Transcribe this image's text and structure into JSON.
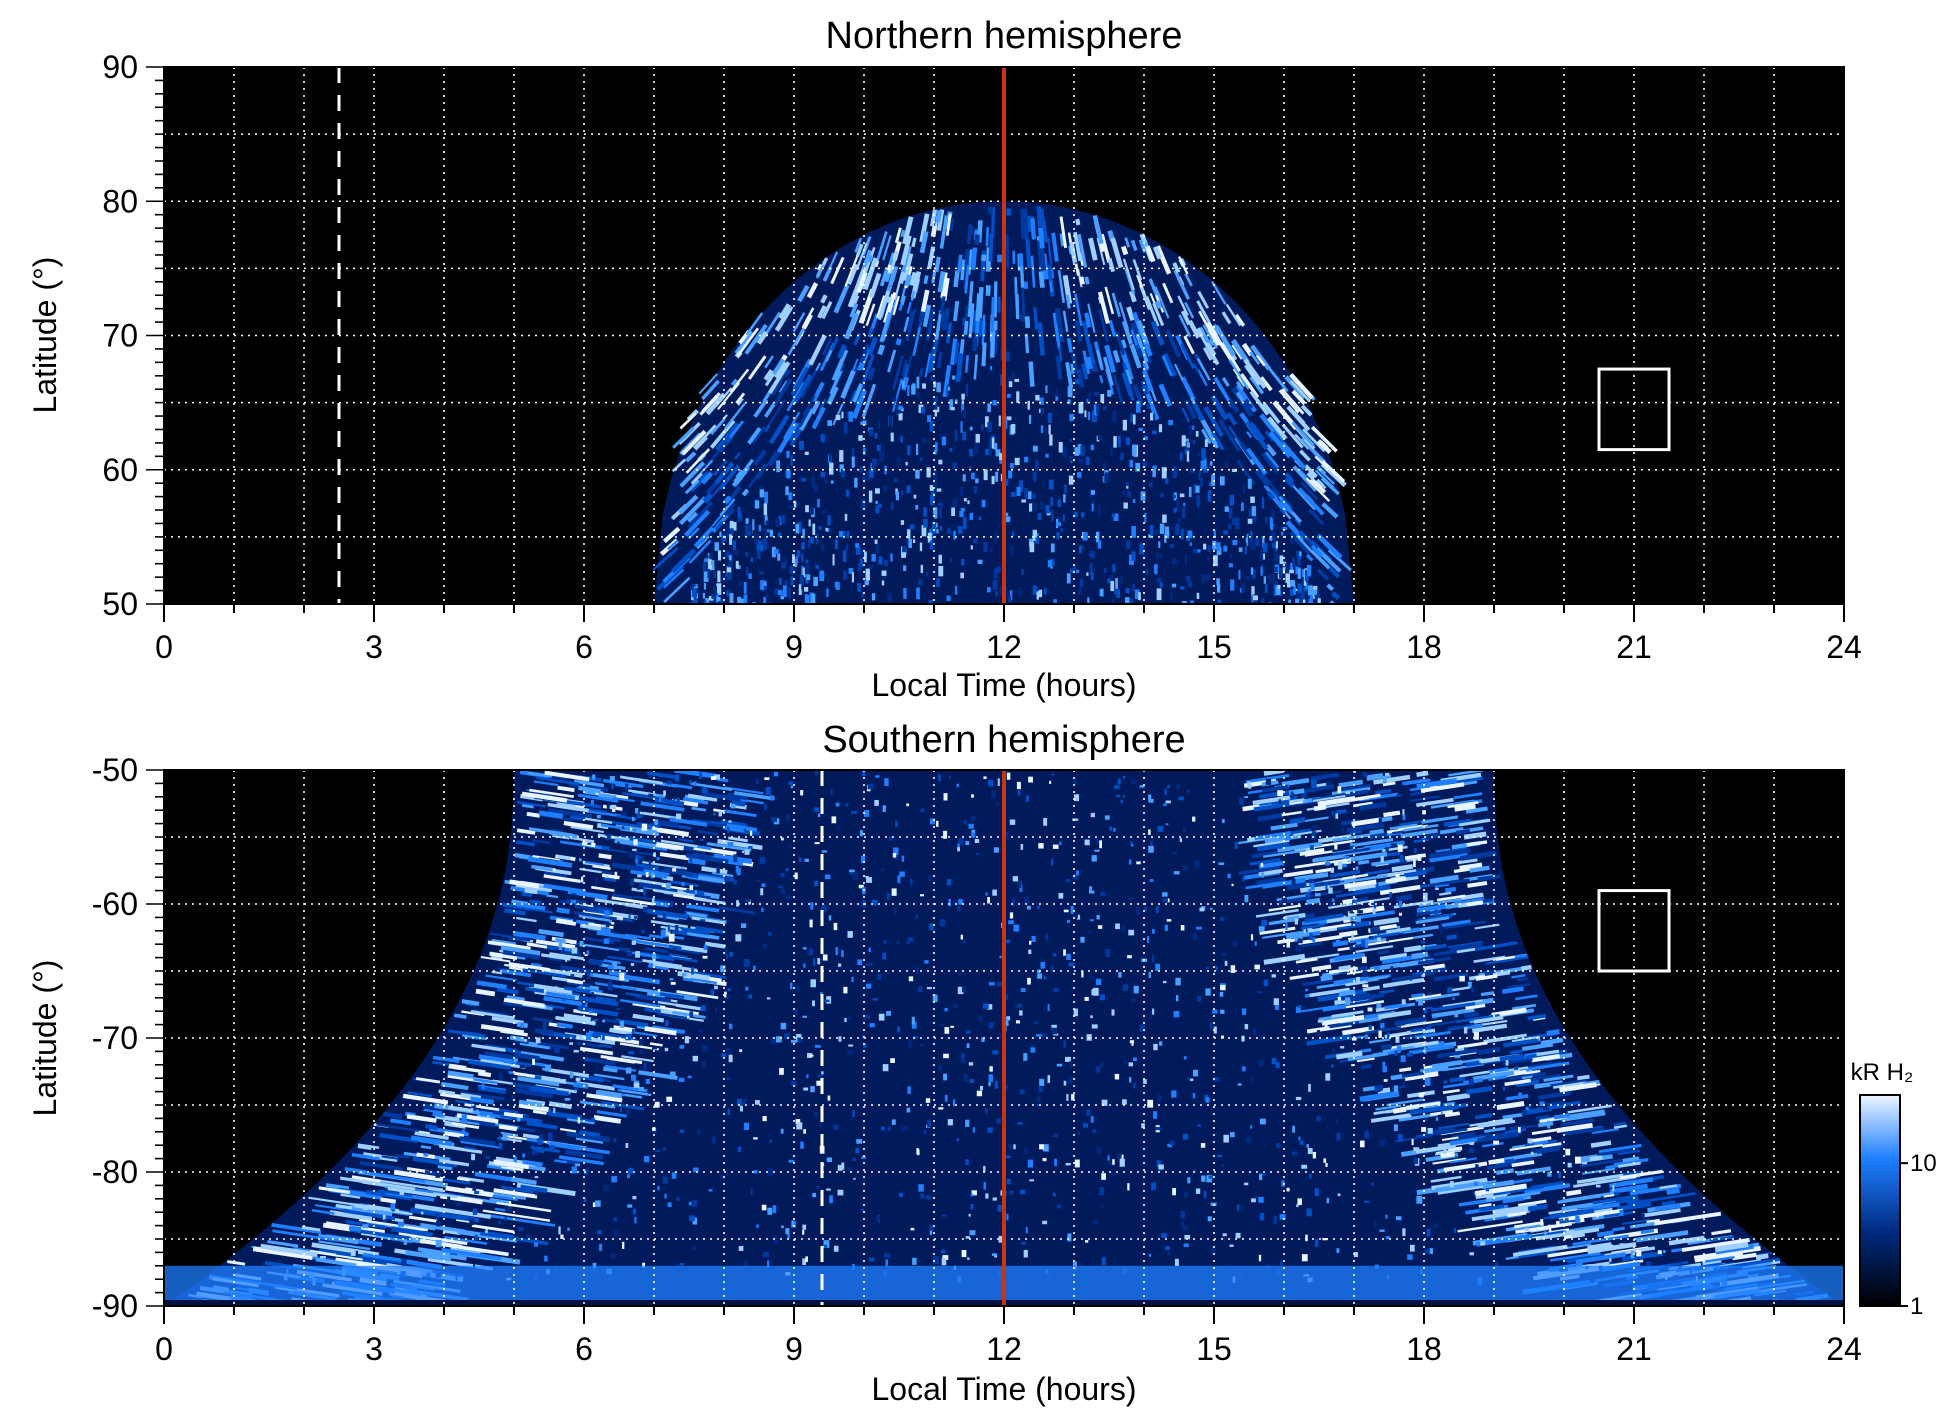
{
  "chart_data": [
    {
      "type": "heatmap",
      "title": "Northern hemisphere",
      "xlabel": "Local Time (hours)",
      "ylabel": "Latitude (°)",
      "xlim": [
        0,
        24
      ],
      "ylim": [
        50,
        90
      ],
      "xticks": [
        "0",
        "3",
        "6",
        "9",
        "12",
        "15",
        "18",
        "21",
        "24"
      ],
      "yticks": [
        "50",
        "60",
        "70",
        "80",
        "90"
      ],
      "xtick_values": [
        0,
        3,
        6,
        9,
        12,
        15,
        18,
        21,
        24
      ],
      "ytick_values": [
        50,
        60,
        70,
        80,
        90
      ],
      "grid": true,
      "emission_lt_range": [
        7,
        17
      ],
      "emission_lat_max": 80,
      "main_oval_lat": 70,
      "noon_line_lt": 12,
      "dashed_line_lt": 2.5,
      "box": {
        "lt": [
          20.5,
          21.5
        ],
        "lat": [
          61.5,
          67.5
        ]
      }
    },
    {
      "type": "heatmap",
      "title": "Southern hemisphere",
      "xlabel": "Local Time (hours)",
      "ylabel": "Latitude (°)",
      "xlim": [
        0,
        24
      ],
      "ylim": [
        -90,
        -50
      ],
      "xticks": [
        "0",
        "3",
        "6",
        "9",
        "12",
        "15",
        "18",
        "21",
        "24"
      ],
      "yticks": [
        "-90",
        "-80",
        "-70",
        "-60",
        "-50"
      ],
      "xtick_values": [
        0,
        3,
        6,
        9,
        12,
        15,
        18,
        21,
        24
      ],
      "ytick_values": [
        -90,
        -80,
        -70,
        -60,
        -50
      ],
      "grid": true,
      "emission_lt_range": [
        5,
        19
      ],
      "emission_lat_max": -50,
      "main_oval_lat": -75,
      "noon_line_lt": 12,
      "dashed_line_lt": 9.4,
      "box": {
        "lt": [
          20.5,
          21.5
        ],
        "lat": [
          -65,
          -59
        ]
      }
    }
  ],
  "colorbar": {
    "label": "kR H₂",
    "ticks": [
      "1",
      "10"
    ],
    "tick_values": [
      1,
      10
    ],
    "range": [
      1,
      30
    ],
    "scale": "log"
  },
  "colors": {
    "background": "#000000",
    "emission_dark": "#003aa0",
    "emission_mid": "#1f7fff",
    "emission_bright": "#e8f4ff",
    "noon_line": "#cc3311",
    "grid": "#ffffff"
  }
}
